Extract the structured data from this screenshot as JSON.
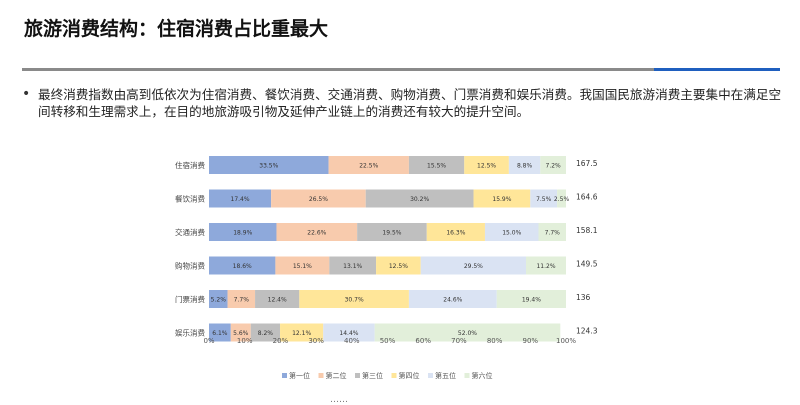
{
  "page": {
    "title": "旅游消费结构：住宿消费占比重最大",
    "bullet": "•",
    "bullet_text": "最终消费指数由高到低依次为住宿消费、餐饮消费、交通消费、购物消费、门票消费和娱乐消费。我国国民旅游消费主要集中在满足空间转移和生理需求上，在目的地旅游吸引物及延伸产业链上的消费还有较大的提升空间。",
    "footer_text": "……"
  },
  "colors": {
    "rule_gray": "#8a8a8a",
    "rule_blue": "#1f5fbf"
  },
  "chart_data": {
    "type": "bar",
    "orientation": "horizontal",
    "stacked": "percent",
    "categories": [
      "住宿消费",
      "餐饮消费",
      "交通消费",
      "购物消费",
      "门票消费",
      "娱乐消费"
    ],
    "totals": [
      "167.5",
      "164.6",
      "158.1",
      "149.5",
      "136",
      "124.3"
    ],
    "series": [
      {
        "name": "第一位",
        "color": "#8ea9db",
        "values": [
          33.5,
          17.4,
          18.9,
          18.6,
          5.2,
          6.1
        ],
        "labels": [
          "33.5%",
          "17.4%",
          "18.9%",
          "18.6%",
          "5.2%",
          "6.1%"
        ]
      },
      {
        "name": "第二位",
        "color": "#f8cbad",
        "values": [
          22.5,
          26.5,
          22.6,
          15.1,
          7.7,
          5.6
        ],
        "labels": [
          "22.5%",
          "26.5%",
          "22.6%",
          "15.1%",
          "7.7%",
          "5.6%"
        ]
      },
      {
        "name": "第三位",
        "color": "#bfbfbf",
        "values": [
          15.5,
          30.2,
          19.5,
          13.1,
          12.4,
          8.2
        ],
        "labels": [
          "15.5%",
          "30.2%",
          "19.5%",
          "13.1%",
          "12.4%",
          "8.2%"
        ]
      },
      {
        "name": "第四位",
        "color": "#ffe699",
        "values": [
          12.5,
          15.9,
          16.3,
          12.5,
          30.7,
          12.1
        ],
        "labels": [
          "12.5%",
          "15.9%",
          "16.3%",
          "12.5%",
          "30.7%",
          "12.1%"
        ]
      },
      {
        "name": "第五位",
        "color": "#dae3f3",
        "values": [
          8.8,
          7.5,
          15.0,
          29.5,
          24.6,
          14.4
        ],
        "labels": [
          "8.8%",
          "7.5%",
          "15.0%",
          "29.5%",
          "24.6%",
          "14.4%"
        ]
      },
      {
        "name": "第六位",
        "color": "#e2efda",
        "values": [
          7.2,
          2.5,
          7.7,
          11.2,
          19.4,
          52.0
        ],
        "labels": [
          "7.2%",
          "2.5%",
          "7.7%",
          "11.2%",
          "19.4%",
          "52.0%"
        ]
      }
    ],
    "x_ticks": [
      "0%",
      "10%",
      "20%",
      "30%",
      "40%",
      "50%",
      "60%",
      "70%",
      "80%",
      "90%",
      "100%"
    ],
    "xlim": [
      0,
      100
    ],
    "legend_position": "bottom",
    "grid": false
  }
}
